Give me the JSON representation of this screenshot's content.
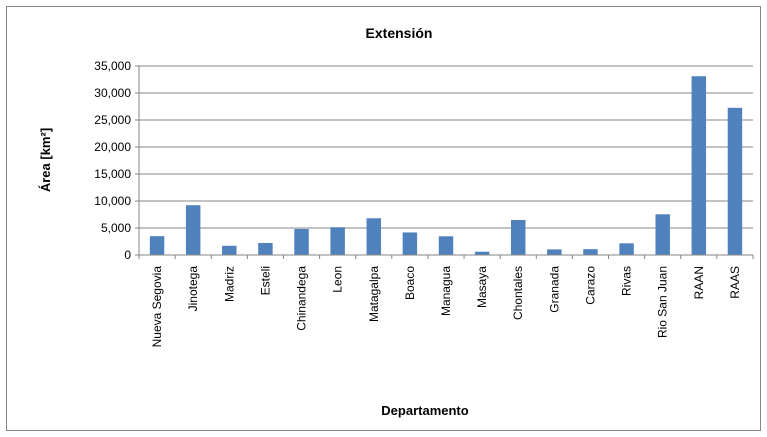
{
  "chart_data": {
    "type": "bar",
    "title": "Extensión",
    "xlabel": "Departamento",
    "ylabel": "Área [km²]",
    "ylim": [
      0,
      35000
    ],
    "yticks": [
      0,
      5000,
      10000,
      15000,
      20000,
      25000,
      30000,
      35000
    ],
    "ytick_labels": [
      "0",
      "5,000",
      "10,000",
      "15,000",
      "20,000",
      "25,000",
      "30,000",
      "35,000"
    ],
    "grid": true,
    "legend": "none",
    "bar_color": "#4f81bd",
    "categories": [
      "Nueva Segovia",
      "Jinotega",
      "Madriz",
      "Esteli",
      "Chinandega",
      "Leon",
      "Matagalpa",
      "Boaco",
      "Managua",
      "Masaya",
      "Chontales",
      "Granada",
      "Carazo",
      "Rivas",
      "Rio San Juan",
      "RAAN",
      "RAAS"
    ],
    "values": [
      3491,
      9222,
      1708,
      2230,
      4822,
      5138,
      6804,
      4177,
      3465,
      611,
      6481,
      1040,
      1081,
      2162,
      7541,
      33106,
      27260
    ]
  }
}
